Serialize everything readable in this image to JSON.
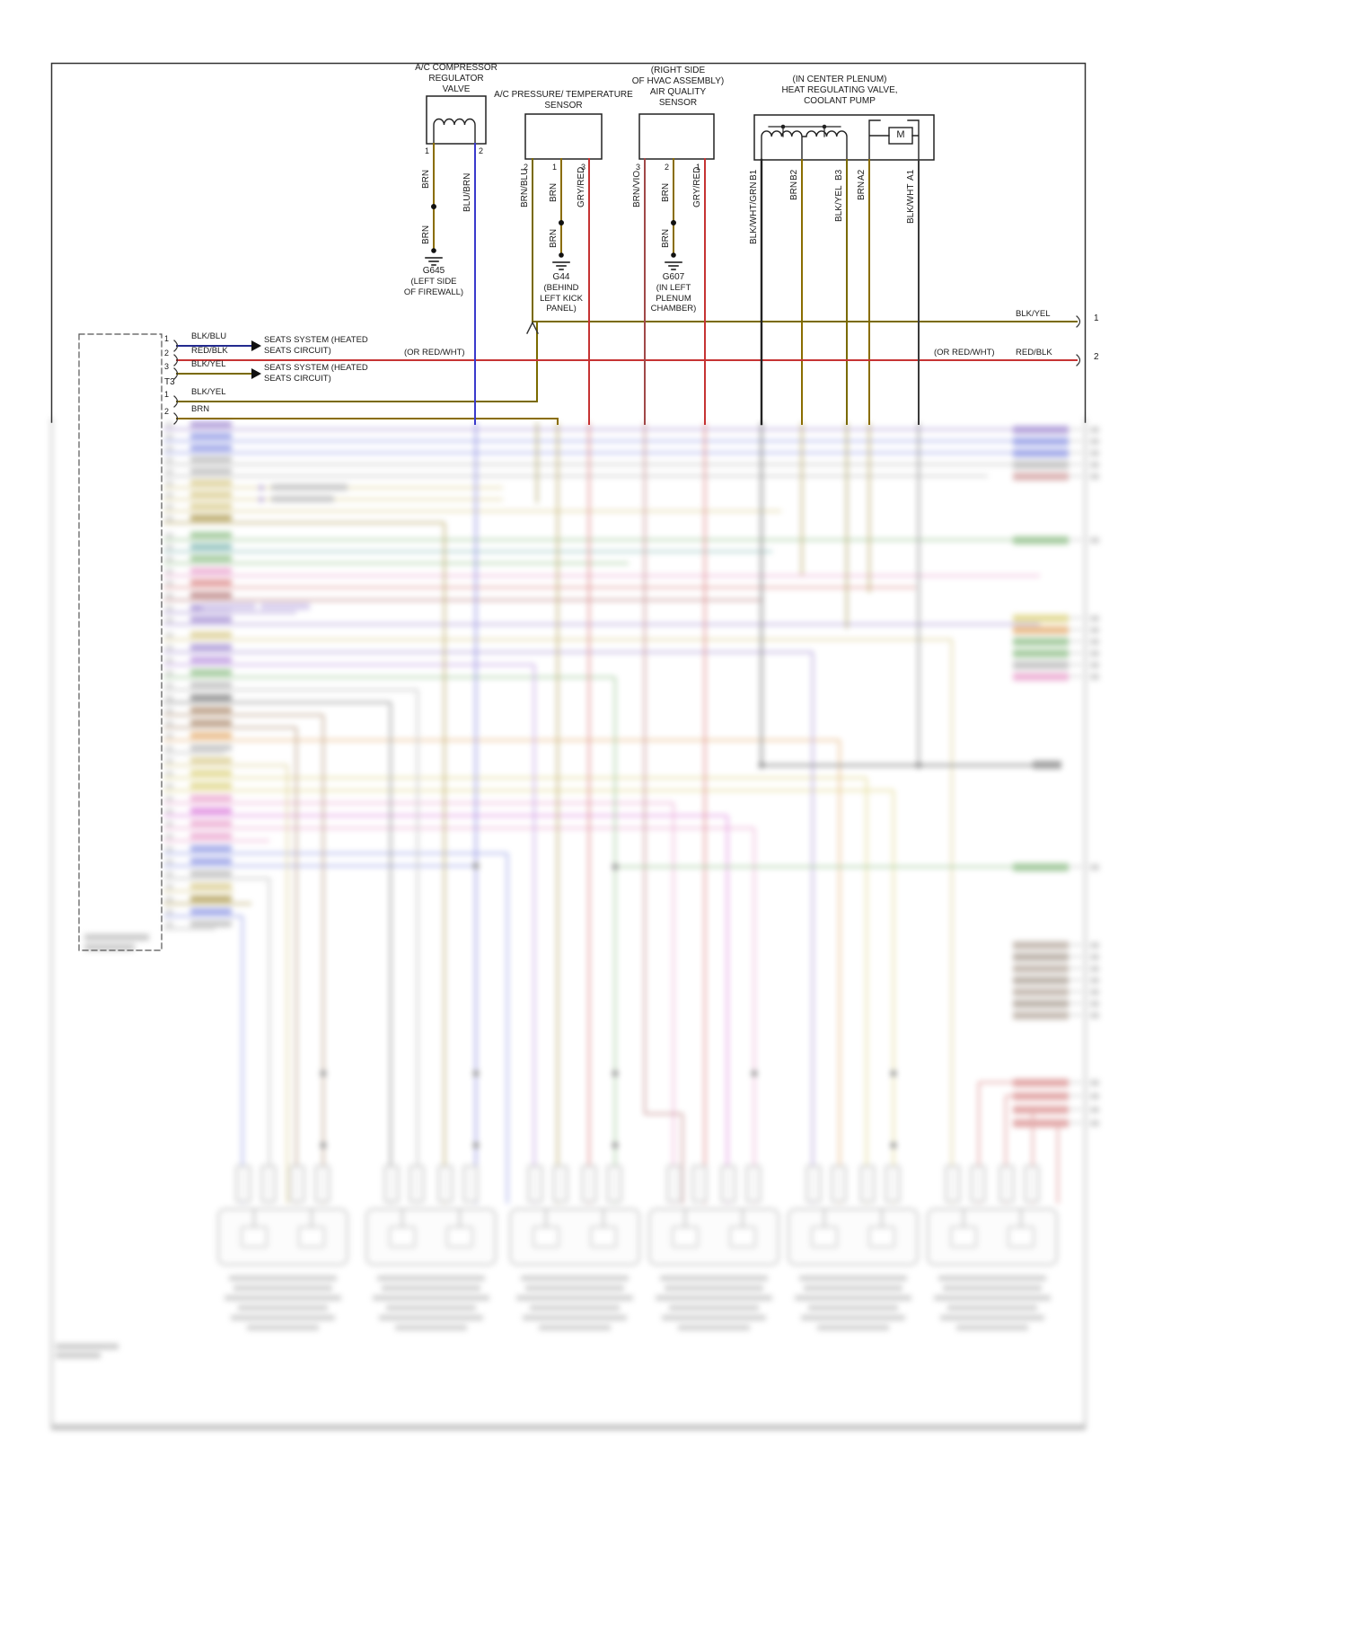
{
  "page": {
    "bg": "#ffffff"
  },
  "colors": {
    "brn": "#8a6d00",
    "blk_yel": "#7a6a00",
    "blu_brn": "#3a3acc",
    "red_blk": "#c63333",
    "gry_red": "#c63333",
    "brn_vio": "#a04848",
    "blk_blu": "#232a8f",
    "blk_wht_grn": "#222222",
    "blk_wht": "#3a3a3a"
  },
  "components": [
    {
      "title": [
        "A/C COMPRESSOR",
        "REGULATOR",
        "VALVE"
      ],
      "pins": [
        "1",
        "2"
      ],
      "wires": [
        "BRN",
        "BRN",
        "BLU/BRN"
      ],
      "ground": {
        "id": "G645",
        "loc": [
          "(LEFT SIDE",
          "OF FIREWALL)"
        ]
      }
    },
    {
      "title": [
        "A/C PRESSURE/ TEMPERATURE",
        "SENSOR"
      ],
      "pins": [
        "2",
        "1",
        "3"
      ],
      "wires": [
        "BRN/BLU",
        "BRN",
        "BRN",
        "GRY/RED"
      ],
      "ground": {
        "id": "G44",
        "loc": [
          "(BEHIND",
          "LEFT KICK",
          "PANEL)"
        ]
      }
    },
    {
      "title": [
        "(RIGHT SIDE",
        "OF HVAC ASSEMBLY)",
        "AIR QUALITY",
        "SENSOR"
      ],
      "pins": [
        "3",
        "2",
        "1"
      ],
      "wires": [
        "BRN/VIO",
        "BRN",
        "BRN",
        "GRY/RED"
      ],
      "ground": {
        "id": "G607",
        "loc": [
          "(IN LEFT",
          "PLENUM",
          "CHAMBER)"
        ]
      }
    },
    {
      "title": [
        "(IN CENTER PLENUM)",
        "HEAT REGULATING VALVE,",
        "COOLANT PUMP"
      ],
      "motor": "M",
      "pin_ids": [
        "B1",
        "B2",
        "B3",
        "A2",
        "A1"
      ],
      "wires": [
        "BLK/WHT/GRN",
        "BRN",
        "BLK/YEL",
        "BRN",
        "BLK/WHT"
      ]
    }
  ],
  "left_connector": {
    "t_label": "T3",
    "rows": [
      {
        "pin": "1",
        "wire": "BLK/BLU",
        "dest": [
          "SEATS SYSTEM (HEATED",
          "SEATS CIRCUIT)"
        ]
      },
      {
        "pin": "2",
        "wire": "RED/BLK",
        "note": "(OR RED/WHT)"
      },
      {
        "pin": "3",
        "wire": "BLK/YEL",
        "dest": [
          "SEATS SYSTEM (HEATED",
          "SEATS CIRCUIT)"
        ]
      },
      {
        "pin": "1",
        "wire": "BLK/YEL"
      },
      {
        "pin": "2",
        "wire": "BRN"
      }
    ]
  },
  "right_edge": {
    "row1": {
      "wire": "BLK/YEL",
      "pin": "1"
    },
    "row2": {
      "note": "(OR RED/WHT)",
      "wire": "RED/BLK",
      "pin": "2"
    }
  }
}
